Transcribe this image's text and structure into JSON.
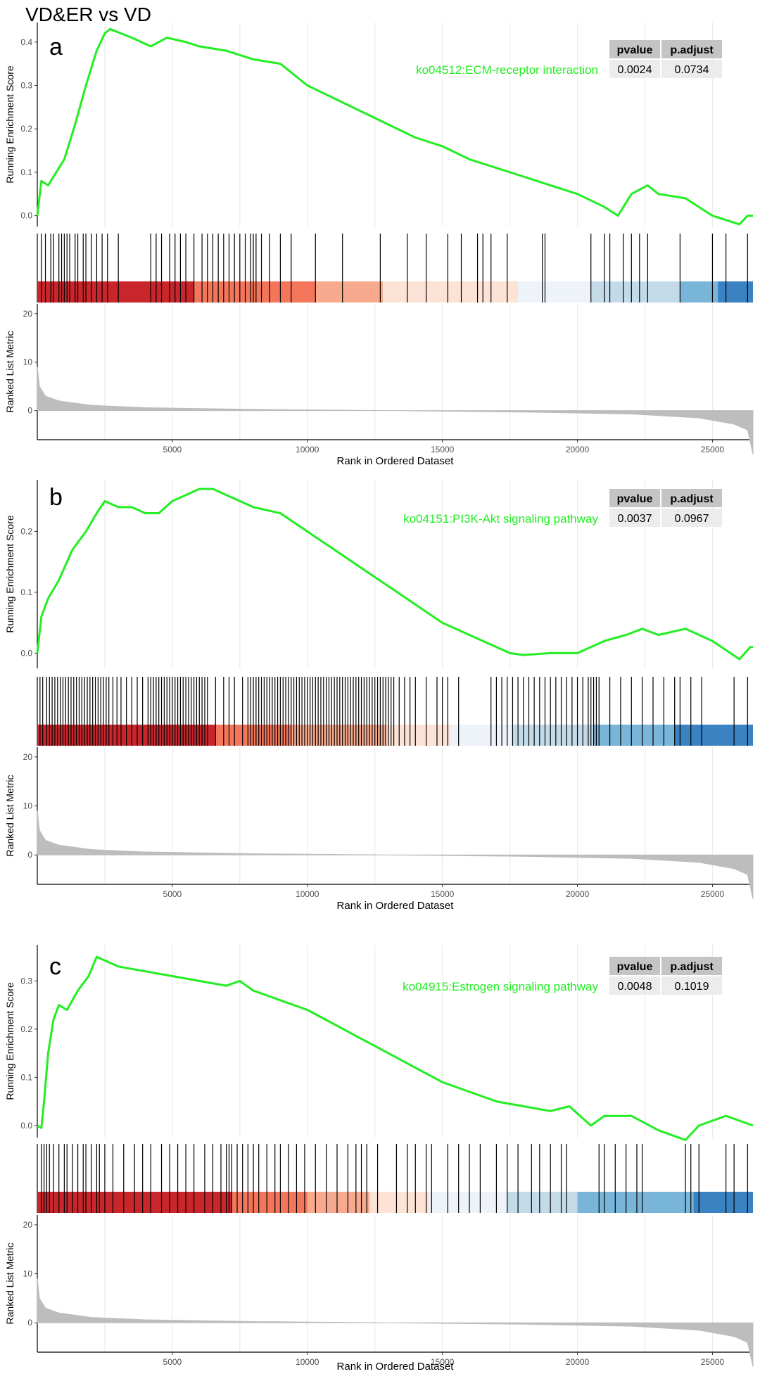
{
  "figure_title": "VD&ER vs VD",
  "colors": {
    "es_line": "#22ee22",
    "hit_line": "#000000",
    "metric_fill": "#bdbdbd",
    "gridline": "#ebebeb",
    "table_header_bg": "#c4c4c4",
    "table_cell_bg": "#ececec",
    "heat_stops": [
      "#b2182b",
      "#de3b30",
      "#f4765a",
      "#f8aa8f",
      "#fde0d3",
      "#eef3fa",
      "#c3dbe9",
      "#79b4d9",
      "#2f7dbf"
    ]
  },
  "chart_data": [
    {
      "type": "line",
      "panel_letter": "a",
      "term": "ko04512:ECM-receptor interaction",
      "table": {
        "headers": [
          "pvalue",
          "p.adjust"
        ],
        "values": [
          "0.0024",
          "0.0734"
        ]
      },
      "ylabel": "Running Enrichment Score",
      "ylabel2": "Ranked List Metric",
      "xlabel": "Rank in Ordered Dataset",
      "xlim": [
        0,
        26500
      ],
      "xticks": [
        5000,
        10000,
        15000,
        20000,
        25000
      ],
      "xtick_labels": [
        "5000",
        "10000",
        "15000",
        "20000",
        "25000"
      ],
      "ylim": [
        -0.025,
        0.445
      ],
      "yticks": [
        0.0,
        0.1,
        0.2,
        0.3,
        0.4
      ],
      "ytick_labels": [
        "0.0",
        "0.1",
        "0.2",
        "0.3",
        "0.4"
      ],
      "es_curve": [
        [
          0,
          0.0
        ],
        [
          150,
          0.08
        ],
        [
          400,
          0.07
        ],
        [
          700,
          0.1
        ],
        [
          1000,
          0.13
        ],
        [
          1400,
          0.21
        ],
        [
          1800,
          0.3
        ],
        [
          2200,
          0.38
        ],
        [
          2500,
          0.42
        ],
        [
          2700,
          0.43
        ],
        [
          3500,
          0.41
        ],
        [
          4200,
          0.39
        ],
        [
          4800,
          0.41
        ],
        [
          5500,
          0.4
        ],
        [
          6000,
          0.39
        ],
        [
          7000,
          0.38
        ],
        [
          8000,
          0.36
        ],
        [
          9000,
          0.35
        ],
        [
          10000,
          0.3
        ],
        [
          11000,
          0.27
        ],
        [
          12000,
          0.24
        ],
        [
          13000,
          0.21
        ],
        [
          14000,
          0.18
        ],
        [
          15000,
          0.16
        ],
        [
          16000,
          0.13
        ],
        [
          17000,
          0.11
        ],
        [
          18000,
          0.09
        ],
        [
          19000,
          0.07
        ],
        [
          20000,
          0.05
        ],
        [
          21000,
          0.02
        ],
        [
          21500,
          0.0
        ],
        [
          22000,
          0.05
        ],
        [
          22600,
          0.07
        ],
        [
          23000,
          0.05
        ],
        [
          24000,
          0.04
        ],
        [
          25000,
          0.0
        ],
        [
          26000,
          -0.02
        ],
        [
          26300,
          0.0
        ],
        [
          26500,
          0.0
        ]
      ],
      "hits": [
        150,
        300,
        500,
        600,
        800,
        900,
        1000,
        1100,
        1200,
        1400,
        1500,
        1700,
        1800,
        2000,
        2200,
        2400,
        2600,
        3000,
        4200,
        4400,
        4600,
        4900,
        5100,
        5300,
        5500,
        5800,
        6100,
        6300,
        6500,
        6700,
        6900,
        7100,
        7300,
        7500,
        7700,
        7900,
        8000,
        8100,
        8300,
        8600,
        9000,
        9400,
        10300,
        11300,
        12700,
        13700,
        14400,
        15200,
        15700,
        16300,
        16500,
        16800,
        17400,
        18700,
        18800,
        20500,
        21000,
        21200,
        21700,
        22000,
        22300,
        22600,
        23800,
        25000,
        25500,
        26300
      ],
      "heat_segments": [
        [
          0,
          5800,
          "#c9262c"
        ],
        [
          5800,
          10300,
          "#f4765a"
        ],
        [
          10300,
          12800,
          "#f8aa8f"
        ],
        [
          12800,
          17800,
          "#fde3d6"
        ],
        [
          17800,
          20500,
          "#eef3fa"
        ],
        [
          20500,
          23800,
          "#c3dbe9"
        ],
        [
          23800,
          25200,
          "#79b4d9"
        ],
        [
          25200,
          26500,
          "#3a82c2"
        ]
      ],
      "metric": {
        "ylim": [
          -6,
          22
        ],
        "yticks": [
          0,
          10,
          20
        ],
        "ytick_labels": [
          "0",
          "10",
          "20"
        ],
        "start": 9,
        "end": -9,
        "curve": [
          [
            0,
            9
          ],
          [
            80,
            5
          ],
          [
            300,
            3
          ],
          [
            800,
            2
          ],
          [
            2000,
            1.1
          ],
          [
            4000,
            0.6
          ],
          [
            8000,
            0.25
          ],
          [
            13000,
            0
          ],
          [
            18000,
            -0.3
          ],
          [
            22000,
            -0.7
          ],
          [
            24500,
            -1.5
          ],
          [
            25800,
            -2.8
          ],
          [
            26300,
            -4
          ],
          [
            26500,
            -9
          ]
        ]
      }
    },
    {
      "type": "line",
      "panel_letter": "b",
      "term": "ko04151:PI3K-Akt signaling pathway",
      "table": {
        "headers": [
          "pvalue",
          "p.adjust"
        ],
        "values": [
          "0.0037",
          "0.0967"
        ]
      },
      "ylabel": "Running Enrichment Score",
      "ylabel2": "Ranked List Metric",
      "xlabel": "Rank in Ordered Dataset",
      "xlim": [
        0,
        26500
      ],
      "xticks": [
        5000,
        10000,
        15000,
        20000,
        25000
      ],
      "xtick_labels": [
        "5000",
        "10000",
        "15000",
        "20000",
        "25000"
      ],
      "ylim": [
        -0.025,
        0.285
      ],
      "yticks": [
        0.0,
        0.1,
        0.2
      ],
      "ytick_labels": [
        "0.0",
        "0.1",
        "0.2"
      ],
      "es_curve": [
        [
          0,
          0.0
        ],
        [
          150,
          0.06
        ],
        [
          400,
          0.09
        ],
        [
          800,
          0.12
        ],
        [
          1300,
          0.17
        ],
        [
          1800,
          0.2
        ],
        [
          2200,
          0.23
        ],
        [
          2500,
          0.25
        ],
        [
          3000,
          0.24
        ],
        [
          3500,
          0.24
        ],
        [
          4000,
          0.23
        ],
        [
          4500,
          0.23
        ],
        [
          5000,
          0.25
        ],
        [
          5500,
          0.26
        ],
        [
          6000,
          0.27
        ],
        [
          6500,
          0.27
        ],
        [
          7000,
          0.26
        ],
        [
          8000,
          0.24
        ],
        [
          9000,
          0.23
        ],
        [
          10000,
          0.2
        ],
        [
          11000,
          0.17
        ],
        [
          12000,
          0.14
        ],
        [
          13000,
          0.11
        ],
        [
          14000,
          0.08
        ],
        [
          15000,
          0.05
        ],
        [
          16000,
          0.03
        ],
        [
          17000,
          0.01
        ],
        [
          17500,
          0.0
        ],
        [
          18000,
          -0.003
        ],
        [
          19000,
          0.0
        ],
        [
          20000,
          0.0
        ],
        [
          21000,
          0.02
        ],
        [
          21800,
          0.03
        ],
        [
          22400,
          0.04
        ],
        [
          23000,
          0.03
        ],
        [
          24000,
          0.04
        ],
        [
          25000,
          0.02
        ],
        [
          26000,
          -0.01
        ],
        [
          26400,
          0.01
        ],
        [
          26500,
          0.01
        ]
      ],
      "hits": [
        100,
        200,
        350,
        450,
        550,
        650,
        750,
        850,
        950,
        1050,
        1150,
        1250,
        1350,
        1450,
        1550,
        1650,
        1750,
        1850,
        1950,
        2050,
        2150,
        2250,
        2350,
        2450,
        2550,
        2650,
        2800,
        2950,
        3100,
        3300,
        3500,
        3700,
        3900,
        4100,
        4200,
        4300,
        4400,
        4500,
        4600,
        4700,
        4800,
        4900,
        5000,
        5100,
        5200,
        5300,
        5400,
        5500,
        5600,
        5700,
        5800,
        5900,
        6000,
        6100,
        6200,
        6300,
        6600,
        6900,
        7100,
        7300,
        7600,
        7800,
        7900,
        8000,
        8100,
        8200,
        8300,
        8400,
        8500,
        8600,
        8700,
        8800,
        8900,
        9000,
        9100,
        9200,
        9300,
        9400,
        9500,
        9600,
        9700,
        9800,
        9900,
        10000,
        10100,
        10200,
        10300,
        10400,
        10500,
        10600,
        10700,
        10800,
        10900,
        11000,
        11100,
        11200,
        11300,
        11400,
        11500,
        11600,
        11700,
        11800,
        11900,
        12000,
        12100,
        12200,
        12300,
        12400,
        12500,
        12600,
        12700,
        12800,
        12900,
        13000,
        13100,
        13200,
        13400,
        13600,
        13800,
        14000,
        14400,
        14800,
        15000,
        15200,
        15600,
        16800,
        17000,
        17200,
        17400,
        17600,
        17800,
        18000,
        18200,
        18400,
        18600,
        18800,
        19000,
        19200,
        19400,
        19600,
        19800,
        20000,
        20200,
        20400,
        20500,
        20600,
        20700,
        20800,
        21200,
        21600,
        22000,
        22400,
        22800,
        23200,
        23600,
        23800,
        24200,
        24600,
        25800,
        26300
      ],
      "heat_segments": [
        [
          0,
          6600,
          "#c9262c"
        ],
        [
          6600,
          9400,
          "#f4765a"
        ],
        [
          9400,
          12900,
          "#f8aa8f"
        ],
        [
          12900,
          15300,
          "#fde3d6"
        ],
        [
          15300,
          17600,
          "#eef3fa"
        ],
        [
          17600,
          20600,
          "#c3dbe9"
        ],
        [
          20600,
          23600,
          "#79b4d9"
        ],
        [
          23600,
          26500,
          "#3a82c2"
        ]
      ],
      "metric": {
        "ylim": [
          -6,
          22
        ],
        "yticks": [
          0,
          10,
          20
        ],
        "ytick_labels": [
          "0",
          "10",
          "20"
        ],
        "start": 9,
        "end": -9,
        "curve": [
          [
            0,
            9
          ],
          [
            80,
            5
          ],
          [
            300,
            3
          ],
          [
            800,
            2
          ],
          [
            2000,
            1.1
          ],
          [
            4000,
            0.6
          ],
          [
            8000,
            0.25
          ],
          [
            13000,
            0
          ],
          [
            18000,
            -0.3
          ],
          [
            22000,
            -0.7
          ],
          [
            24500,
            -1.5
          ],
          [
            25800,
            -2.8
          ],
          [
            26300,
            -4
          ],
          [
            26500,
            -9
          ]
        ]
      }
    },
    {
      "type": "line",
      "panel_letter": "c",
      "term": "ko04915:Estrogen signaling pathway",
      "table": {
        "headers": [
          "pvalue",
          "p.adjust"
        ],
        "values": [
          "0.0048",
          "0.1019"
        ]
      },
      "ylabel": "Running Enrichment Score",
      "ylabel2": "Ranked List Metric",
      "xlabel": "Rank in Ordered Dataset",
      "xlim": [
        0,
        26500
      ],
      "xticks": [
        5000,
        10000,
        15000,
        20000,
        25000
      ],
      "xtick_labels": [
        "5000",
        "10000",
        "15000",
        "20000",
        "25000"
      ],
      "ylim": [
        -0.025,
        0.375
      ],
      "yticks": [
        0.0,
        0.1,
        0.2,
        0.3
      ],
      "ytick_labels": [
        "0.0",
        "0.1",
        "0.2",
        "0.3"
      ],
      "es_curve": [
        [
          0,
          0.0
        ],
        [
          150,
          -0.005
        ],
        [
          250,
          0.05
        ],
        [
          400,
          0.15
        ],
        [
          600,
          0.22
        ],
        [
          800,
          0.25
        ],
        [
          1100,
          0.24
        ],
        [
          1500,
          0.28
        ],
        [
          1900,
          0.31
        ],
        [
          2200,
          0.35
        ],
        [
          2600,
          0.34
        ],
        [
          3000,
          0.33
        ],
        [
          4000,
          0.32
        ],
        [
          5000,
          0.31
        ],
        [
          6000,
          0.3
        ],
        [
          7000,
          0.29
        ],
        [
          7500,
          0.3
        ],
        [
          8000,
          0.28
        ],
        [
          9000,
          0.26
        ],
        [
          10000,
          0.24
        ],
        [
          11000,
          0.21
        ],
        [
          12000,
          0.18
        ],
        [
          13000,
          0.15
        ],
        [
          14000,
          0.12
        ],
        [
          15000,
          0.09
        ],
        [
          16000,
          0.07
        ],
        [
          17000,
          0.05
        ],
        [
          18000,
          0.04
        ],
        [
          19000,
          0.03
        ],
        [
          19700,
          0.04
        ],
        [
          20500,
          0.0
        ],
        [
          21000,
          0.02
        ],
        [
          22000,
          0.02
        ],
        [
          23000,
          -0.01
        ],
        [
          24000,
          -0.03
        ],
        [
          24500,
          0.0
        ],
        [
          25000,
          0.01
        ],
        [
          25500,
          0.02
        ],
        [
          26000,
          0.01
        ],
        [
          26500,
          0.0
        ]
      ],
      "hits": [
        150,
        250,
        350,
        450,
        600,
        800,
        1000,
        1100,
        1300,
        1500,
        1700,
        1800,
        2000,
        2200,
        2300,
        2500,
        2800,
        3200,
        3600,
        3900,
        4200,
        4600,
        4900,
        5200,
        5500,
        5800,
        6200,
        6500,
        6800,
        7000,
        7100,
        7200,
        7400,
        7600,
        7800,
        8000,
        8200,
        8500,
        8800,
        9000,
        9300,
        9600,
        9900,
        10300,
        10700,
        11100,
        11500,
        11800,
        12000,
        12200,
        12600,
        13300,
        13700,
        14000,
        14400,
        14600,
        15200,
        15600,
        16000,
        16400,
        17000,
        17400,
        17800,
        18300,
        18600,
        19000,
        19400,
        19600,
        20800,
        21000,
        21400,
        21800,
        22200,
        22400,
        24000,
        24200,
        24500,
        25500,
        25800,
        26300
      ],
      "heat_segments": [
        [
          0,
          7200,
          "#c9262c"
        ],
        [
          7200,
          10000,
          "#f4765a"
        ],
        [
          10000,
          12300,
          "#f8aa8f"
        ],
        [
          12300,
          14500,
          "#fde3d6"
        ],
        [
          14500,
          17400,
          "#eef3fa"
        ],
        [
          17400,
          20000,
          "#c3dbe9"
        ],
        [
          20000,
          24300,
          "#79b4d9"
        ],
        [
          24300,
          26500,
          "#3a82c2"
        ]
      ],
      "metric": {
        "ylim": [
          -6,
          22
        ],
        "yticks": [
          0,
          10,
          20
        ],
        "ytick_labels": [
          "0",
          "10",
          "20"
        ],
        "start": 9,
        "end": -9,
        "curve": [
          [
            0,
            9
          ],
          [
            80,
            5
          ],
          [
            300,
            3
          ],
          [
            800,
            2
          ],
          [
            2000,
            1.1
          ],
          [
            4000,
            0.6
          ],
          [
            8000,
            0.25
          ],
          [
            13000,
            0
          ],
          [
            18000,
            -0.3
          ],
          [
            22000,
            -0.7
          ],
          [
            24500,
            -1.5
          ],
          [
            25800,
            -2.8
          ],
          [
            26300,
            -4
          ],
          [
            26500,
            -9
          ]
        ]
      }
    }
  ]
}
